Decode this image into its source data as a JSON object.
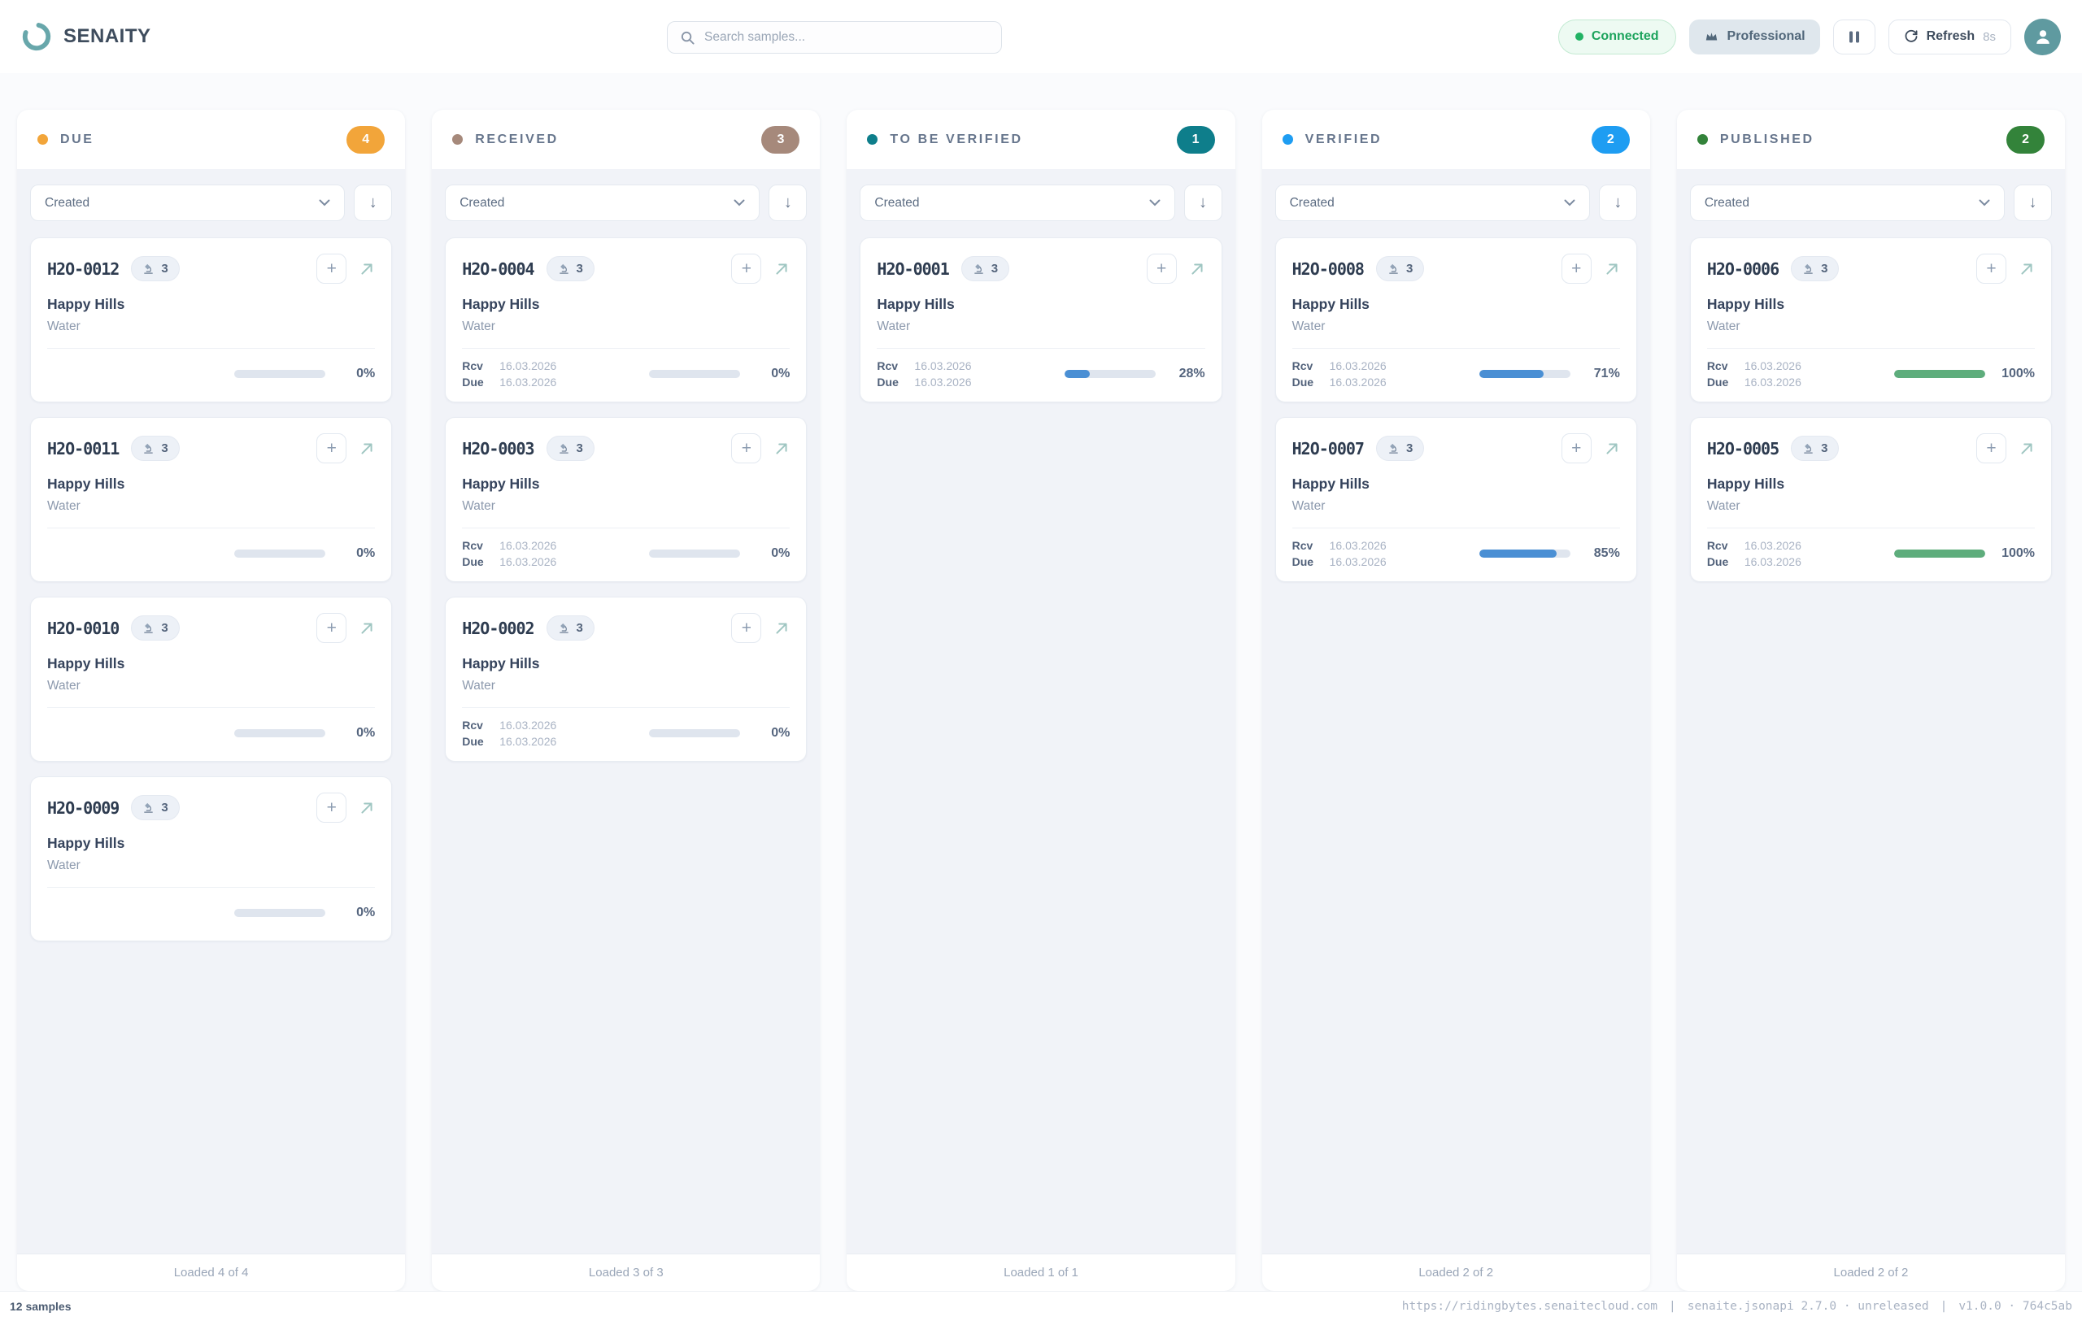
{
  "header": {
    "brand": "SENAITY",
    "logo_color": "#68a7ab",
    "search": {
      "placeholder": "Search samples..."
    },
    "connection_badge": {
      "label": "Connected",
      "color": "#1ca35c",
      "bg": "#edfaf2",
      "dot_color": "#22b364"
    },
    "plan_badge": {
      "label": "Professional",
      "color": "#51677a",
      "bg": "#dfe7ed"
    },
    "refresh": {
      "label": "Refresh",
      "interval": "8s"
    },
    "avatar_color": "#5f9aa0"
  },
  "icons": {
    "logo": "open-ring",
    "search": "magnifier",
    "crown": "crown",
    "pause": "pause-bars",
    "refresh": "circular-arrow",
    "avatar": "person-silhouette",
    "microscope": "microscope",
    "add": "+",
    "open_sample": "arrow-up-right",
    "chevron_down": "chevron-down",
    "sort_desc": "↓"
  },
  "board": {
    "labels": {
      "received": "Rcv",
      "due": "Due"
    },
    "columns": [
      {
        "title": "DUE",
        "count": "4",
        "accent": "#f2a53a",
        "sort_by": "Created",
        "footer": "Loaded 4 of 4",
        "cards": [
          {
            "id": "H2O-0012",
            "analyses": "3",
            "client": "Happy Hills",
            "sample_type": "Water",
            "progress": 0,
            "progress_label": "0%",
            "progress_color": "#4a8fd4"
          },
          {
            "id": "H2O-0011",
            "analyses": "3",
            "client": "Happy Hills",
            "sample_type": "Water",
            "progress": 0,
            "progress_label": "0%",
            "progress_color": "#4a8fd4"
          },
          {
            "id": "H2O-0010",
            "analyses": "3",
            "client": "Happy Hills",
            "sample_type": "Water",
            "progress": 0,
            "progress_label": "0%",
            "progress_color": "#4a8fd4"
          },
          {
            "id": "H2O-0009",
            "analyses": "3",
            "client": "Happy Hills",
            "sample_type": "Water",
            "progress": 0,
            "progress_label": "0%",
            "progress_color": "#4a8fd4"
          }
        ]
      },
      {
        "title": "RECEIVED",
        "count": "3",
        "accent": "#a6897b",
        "sort_by": "Created",
        "footer": "Loaded 3 of 3",
        "cards": [
          {
            "id": "H2O-0004",
            "analyses": "3",
            "client": "Happy Hills",
            "sample_type": "Water",
            "received": "16.03.2026",
            "due": "16.03.2026",
            "progress": 0,
            "progress_label": "0%",
            "progress_color": "#4a8fd4"
          },
          {
            "id": "H2O-0003",
            "analyses": "3",
            "client": "Happy Hills",
            "sample_type": "Water",
            "received": "16.03.2026",
            "due": "16.03.2026",
            "progress": 0,
            "progress_label": "0%",
            "progress_color": "#4a8fd4"
          },
          {
            "id": "H2O-0002",
            "analyses": "3",
            "client": "Happy Hills",
            "sample_type": "Water",
            "received": "16.03.2026",
            "due": "16.03.2026",
            "progress": 0,
            "progress_label": "0%",
            "progress_color": "#4a8fd4"
          }
        ]
      },
      {
        "title": "TO BE VERIFIED",
        "count": "1",
        "accent": "#0e7e8b",
        "sort_by": "Created",
        "footer": "Loaded 1 of 1",
        "cards": [
          {
            "id": "H2O-0001",
            "analyses": "3",
            "client": "Happy Hills",
            "sample_type": "Water",
            "received": "16.03.2026",
            "due": "16.03.2026",
            "progress": 28,
            "progress_label": "28%",
            "progress_color": "#4a8fd4"
          }
        ]
      },
      {
        "title": "VERIFIED",
        "count": "2",
        "accent": "#1e9df2",
        "sort_by": "Created",
        "footer": "Loaded 2 of 2",
        "cards": [
          {
            "id": "H2O-0008",
            "analyses": "3",
            "client": "Happy Hills",
            "sample_type": "Water",
            "received": "16.03.2026",
            "due": "16.03.2026",
            "progress": 71,
            "progress_label": "71%",
            "progress_color": "#4a8fd4"
          },
          {
            "id": "H2O-0007",
            "analyses": "3",
            "client": "Happy Hills",
            "sample_type": "Water",
            "received": "16.03.2026",
            "due": "16.03.2026",
            "progress": 85,
            "progress_label": "85%",
            "progress_color": "#4a8fd4"
          }
        ]
      },
      {
        "title": "PUBLISHED",
        "count": "2",
        "accent": "#33833a",
        "sort_by": "Created",
        "footer": "Loaded 2 of 2",
        "cards": [
          {
            "id": "H2O-0006",
            "analyses": "3",
            "client": "Happy Hills",
            "sample_type": "Water",
            "received": "16.03.2026",
            "due": "16.03.2026",
            "progress": 100,
            "progress_label": "100%",
            "progress_color": "#5ead7c"
          },
          {
            "id": "H2O-0005",
            "analyses": "3",
            "client": "Happy Hills",
            "sample_type": "Water",
            "received": "16.03.2026",
            "due": "16.03.2026",
            "progress": 100,
            "progress_label": "100%",
            "progress_color": "#5ead7c"
          }
        ]
      }
    ]
  },
  "status_bar": {
    "samples": "12 samples",
    "server": "https://ridingbytes.senaitecloud.com",
    "api": "senaite.jsonapi 2.7.0 · unreleased",
    "version": "v1.0.0 · 764c5ab",
    "separator": "|"
  }
}
